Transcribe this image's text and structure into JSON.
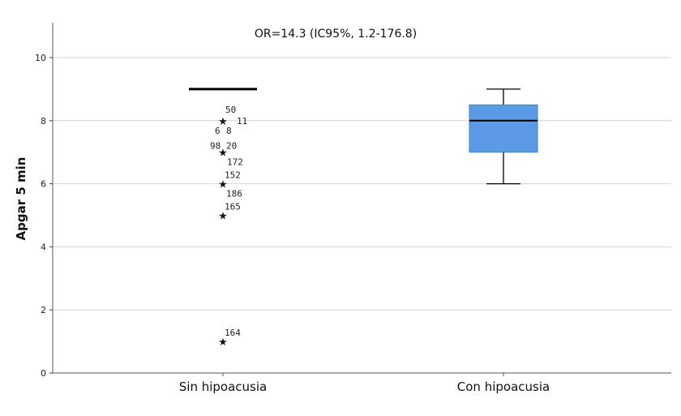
{
  "chart_data": {
    "type": "boxplot",
    "annotation": "OR=14.3 (IC95%, 1.2-176.8)",
    "ylabel": "Apgar 5 min",
    "ylim": [
      0,
      11
    ],
    "yticks": [
      "0",
      "2",
      "4",
      "6",
      "8",
      "10"
    ],
    "grid": true,
    "categories": [
      "Sin hipoacusia",
      "Con hipoacusia"
    ],
    "boxes": [
      {
        "category": "Sin hipoacusia",
        "min": 9,
        "q1": 9,
        "median": 9,
        "q3": 9,
        "max": 9,
        "color": "#000000",
        "outliers": [
          {
            "value": 8,
            "labels": [
              "50",
              "11",
              "6",
              "8"
            ]
          },
          {
            "value": 7,
            "labels": [
              "98",
              "20",
              "172"
            ]
          },
          {
            "value": 6,
            "labels": [
              "152",
              "186"
            ]
          },
          {
            "value": 5,
            "labels": [
              "165"
            ]
          },
          {
            "value": 1,
            "labels": [
              "164"
            ]
          }
        ]
      },
      {
        "category": "Con hipoacusia",
        "min": 6,
        "q1": 7,
        "median": 8,
        "q3": 8.5,
        "max": 9,
        "color": "#5b9ae6",
        "outliers": []
      }
    ],
    "outlier_marker": "★"
  }
}
